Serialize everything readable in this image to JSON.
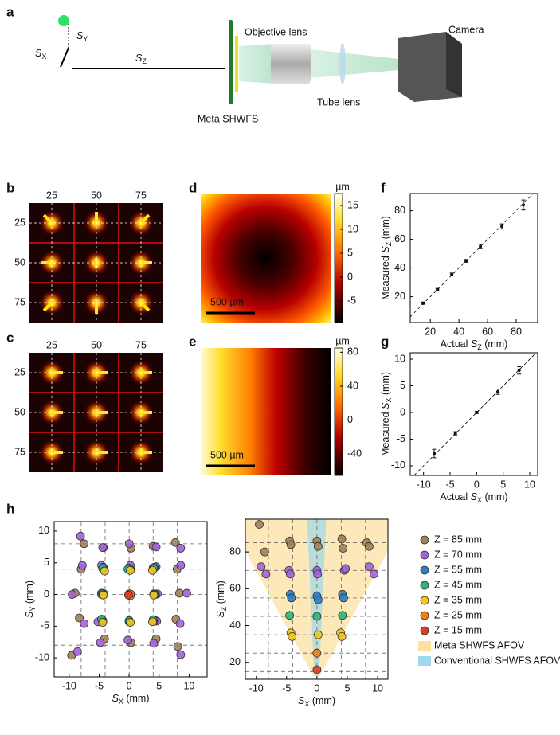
{
  "diagram": {
    "panel": "a",
    "sy": {
      "symbol": "S",
      "sub": "Y"
    },
    "sx": {
      "symbol": "S",
      "sub": "X"
    },
    "sz": {
      "symbol": "S",
      "sub": "Z"
    },
    "objective": "Objective lens",
    "camera": "Camera",
    "meta": "Meta SHWFS",
    "tube": "Tube lens"
  },
  "spot_grids": [
    {
      "panel": "b",
      "col_labels": [
        25,
        50,
        75
      ],
      "row_labels": [
        25,
        50,
        75
      ]
    },
    {
      "panel": "c",
      "col_labels": [
        25,
        50,
        75
      ],
      "row_labels": [
        25,
        50,
        75
      ]
    }
  ],
  "chart_data": [
    {
      "type": "heatmap",
      "panel": "d",
      "colorbar_label": "µm",
      "clim": [
        -9.5,
        17.5
      ],
      "cticks": [
        15,
        10,
        5,
        0,
        -5
      ],
      "scale_bar": "500 µm"
    },
    {
      "type": "heatmap",
      "panel": "e",
      "colorbar_label": "µm",
      "clim": [
        -65,
        85
      ],
      "cticks": [
        80,
        40,
        0,
        -40
      ],
      "scale_bar": "500 µm"
    },
    {
      "type": "scatter",
      "panel": "f",
      "diagonal": true,
      "xlabel": {
        "prefix": "Actual ",
        "symbol": "S",
        "sub": "Z",
        "unit": " (mm)"
      },
      "ylabel": {
        "prefix": "Measured ",
        "symbol": "S",
        "sub": "Z",
        "unit": " (mm)"
      },
      "xlim": [
        6,
        95
      ],
      "ylim": [
        2,
        92
      ],
      "xticks": [
        20,
        40,
        60,
        80
      ],
      "yticks": [
        20,
        40,
        60,
        80
      ],
      "series": [
        {
          "color": "#111111",
          "x": [
            15,
            25,
            35,
            45,
            55,
            70,
            85
          ],
          "values": [
            15.5,
            25,
            35.5,
            45,
            55,
            69,
            84
          ],
          "errors": [
            0.8,
            0.8,
            1,
            1,
            1.5,
            1.8,
            3.5
          ]
        }
      ]
    },
    {
      "type": "scatter",
      "panel": "g",
      "diagonal": true,
      "xlabel": {
        "prefix": "Actual ",
        "symbol": "S",
        "sub": "X",
        "unit": " (mm)"
      },
      "ylabel": {
        "prefix": "Measured ",
        "symbol": "S",
        "sub": "X",
        "unit": " (mm)"
      },
      "xlim": [
        -12.5,
        11.5
      ],
      "ylim": [
        -11.8,
        11.2
      ],
      "xticks": [
        -10,
        -5,
        0,
        5,
        10
      ],
      "yticks": [
        -10,
        -5,
        0,
        5,
        10
      ],
      "series": [
        {
          "color": "#111111",
          "x": [
            -8,
            -4,
            0,
            4,
            8
          ],
          "values": [
            -7.7,
            -3.9,
            0,
            3.9,
            7.9
          ],
          "errors": [
            0.8,
            0.3,
            0.2,
            0.5,
            0.7
          ]
        }
      ]
    },
    {
      "type": "scatter",
      "panel": "h",
      "xlabel": {
        "symbol": "S",
        "sub": "X",
        "unit": " (mm)"
      },
      "ylabel": {
        "symbol": "S",
        "sub": "Y",
        "unit": " (mm)"
      },
      "xlim": [
        -12.5,
        13
      ],
      "ylim": [
        -13,
        11.5
      ],
      "xticks": [
        -10,
        -5,
        0,
        5,
        10
      ],
      "yticks": [
        -10,
        -5,
        0,
        5,
        10
      ],
      "guides_x": [
        -8,
        -4,
        0,
        4,
        8
      ],
      "guides_y": [
        -8,
        -4,
        0,
        4,
        8
      ],
      "series": [
        {
          "color": "#a0805a",
          "x": [
            -7.5,
            -4.3,
            0.3,
            4.0,
            7.7,
            -8.0,
            -4.3,
            0.2,
            4.0,
            8.0,
            -9.0,
            -4.2,
            0,
            4.1,
            8.4,
            -8.3,
            -4.4,
            0,
            4.2,
            7.8,
            -9.6,
            -4.1,
            0.3,
            4.5,
            8.1
          ],
          "values": [
            8.0,
            7.4,
            7.3,
            7.6,
            8.2,
            4.0,
            4.0,
            4.1,
            4.2,
            4.0,
            0.2,
            0.1,
            0,
            0.1,
            0.2,
            -3.7,
            -4.2,
            -4.1,
            -4.0,
            -3.9,
            -9.6,
            -7.0,
            -7.6,
            -7.0,
            -8.2
          ]
        },
        {
          "color": "#a462dc",
          "x": [
            -8.1,
            -4.4,
            0,
            4.5,
            8.6,
            -7.8,
            -4.6,
            0.2,
            4.5,
            8.6,
            -9.5,
            -4.6,
            0,
            4.7,
            9.6,
            -7.5,
            -5.2,
            0,
            4.6,
            8.5,
            -8.6,
            -4.8,
            -0.2,
            4.1,
            8.6
          ],
          "values": [
            9.2,
            7.4,
            8.0,
            7.5,
            7.3,
            4.6,
            4.6,
            4.6,
            4.4,
            4.6,
            0,
            0.2,
            0.1,
            0.1,
            0.2,
            -4.6,
            -4.3,
            -4.2,
            -4.2,
            -4.6,
            -9.0,
            -7.6,
            -7.2,
            -7.7,
            -9.5
          ]
        },
        {
          "color": "#2e7fc8",
          "x": [
            -4.3,
            0,
            4.2,
            -4.6,
            0,
            4.4,
            -4.4,
            0,
            4.1
          ],
          "values": [
            4.3,
            4.2,
            4.3,
            0,
            0,
            0,
            -4.1,
            -4.3,
            -4.2
          ]
        },
        {
          "color": "#2bb673",
          "x": [
            -4.4,
            -0.2,
            4.1,
            -4.4,
            0,
            4.2,
            -4.6,
            0,
            4.0
          ],
          "values": [
            4.1,
            4.0,
            4.1,
            0.1,
            0,
            0,
            -3.9,
            -4.1,
            -4.0
          ]
        },
        {
          "color": "#f5c518",
          "x": [
            -4.1,
            0.2,
            3.9,
            -4.3,
            0.2,
            4.1,
            -4.4,
            0.2,
            3.9
          ],
          "values": [
            3.7,
            3.8,
            3.8,
            -0.1,
            -0.2,
            -0.1,
            -4.4,
            -4.4,
            -4.3
          ]
        },
        {
          "color": "#f07d1a",
          "x": [
            0.2
          ],
          "values": [
            0.1
          ]
        },
        {
          "color": "#e03a2a",
          "x": [
            -0.1
          ],
          "values": [
            -0.1
          ]
        }
      ]
    },
    {
      "type": "scatter",
      "xlabel": {
        "symbol": "S",
        "sub": "X",
        "unit": " (mm)"
      },
      "ylabel": {
        "symbol": "S",
        "sub": "Z",
        "unit": " (mm)"
      },
      "xlim": [
        -11.8,
        11.7
      ],
      "ylim": [
        10.8,
        97.8
      ],
      "xticks": [
        -10,
        -5,
        0,
        5,
        10
      ],
      "yticks": [
        20,
        40,
        60,
        80
      ],
      "guides_x": [
        -8,
        -4,
        0,
        4,
        8
      ],
      "guides_y": [
        15,
        25,
        35,
        45,
        55,
        70,
        85
      ],
      "regions": [
        {
          "name": "Meta SHWFS AFOV",
          "color": "#fbe0a0"
        },
        {
          "name": "Conventional SHWFS AFOV",
          "color": "#9ed8ea"
        }
      ],
      "series": [
        {
          "name": "Z = 85 mm",
          "color": "#a0805a",
          "x": [
            -9.5,
            -8.6,
            -4.5,
            -4.3,
            0,
            0.2,
            4.1,
            4.3,
            8.2,
            8.6
          ],
          "values": [
            95,
            80,
            86,
            84,
            86,
            83,
            87,
            82,
            85,
            83
          ]
        },
        {
          "name": "Z = 70 mm",
          "color": "#a462dc",
          "x": [
            -9.2,
            -8.4,
            -4.6,
            -4.4,
            0,
            0.1,
            4.5,
            4.7,
            8.6,
            9.4
          ],
          "values": [
            72,
            68,
            70,
            68,
            70,
            68,
            70,
            71,
            72,
            68
          ]
        },
        {
          "name": "Z = 55 mm",
          "color": "#2e7fc8",
          "x": [
            -4.4,
            -4.2,
            0,
            0.2,
            4.2,
            4.4
          ],
          "values": [
            57,
            55,
            56,
            54,
            57,
            55
          ]
        },
        {
          "name": "Z = 45 mm",
          "color": "#2bb673",
          "x": [
            -4.5,
            0,
            4.2
          ],
          "values": [
            45.5,
            45,
            45.5
          ]
        },
        {
          "name": "Z = 35 mm",
          "color": "#f5c518",
          "x": [
            -4.3,
            -4.1,
            0.2,
            3.9,
            4.1
          ],
          "values": [
            36,
            34,
            35,
            36,
            34
          ]
        },
        {
          "name": "Z = 25 mm",
          "color": "#f07d1a",
          "x": [
            0
          ],
          "values": [
            25
          ]
        },
        {
          "name": "Z = 15 mm",
          "color": "#e03a2a",
          "x": [
            0
          ],
          "values": [
            16
          ]
        }
      ]
    }
  ]
}
